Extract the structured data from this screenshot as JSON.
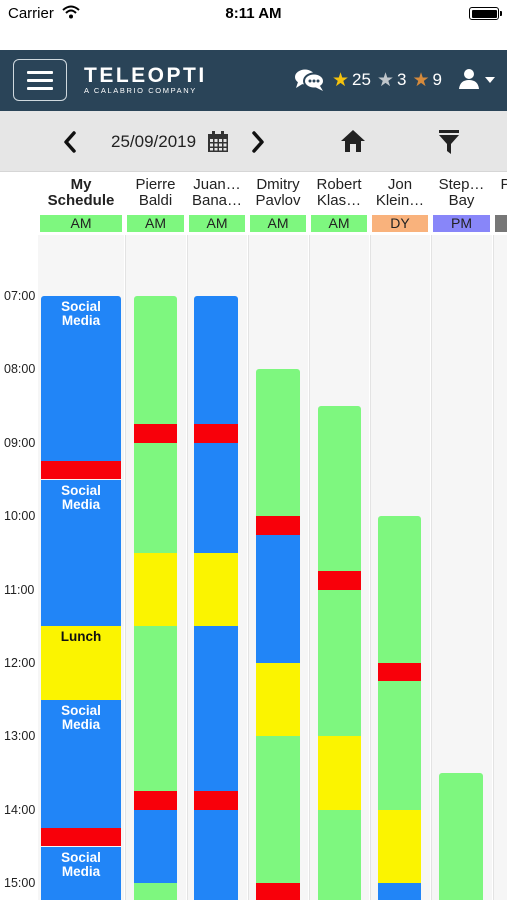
{
  "status_bar": {
    "carrier": "Carrier",
    "time": "8:11 AM"
  },
  "header": {
    "logo": "TELEOPTI",
    "logo_sub": "A CALABRIO COMPANY",
    "gold_stars": "25",
    "silver_stars": "3",
    "bronze_stars": "9",
    "icons": {
      "menu": "hamburger-icon",
      "messages": "chat-bubbles-icon",
      "user": "user-icon"
    }
  },
  "toolbar": {
    "date": "25/09/2019"
  },
  "colors": {
    "activity": "#2185f7",
    "break": "#7ef77f",
    "lunch": "#fbf400",
    "meeting": "#f8000a",
    "shift_am": "#7ef77f",
    "shift_dy": "#f9b27c",
    "shift_pm": "#8886f9",
    "shift_unknown": "#777777"
  },
  "hours": [
    "07:00",
    "08:00",
    "09:00",
    "10:00",
    "11:00",
    "12:00",
    "13:00",
    "14:00",
    "15:00"
  ],
  "columns": [
    {
      "id": "my-schedule",
      "mine": true,
      "line1": "My",
      "line2": "Schedule",
      "period": "AM",
      "period_color": "#7ef77f",
      "blocks": [
        {
          "start": "07:00",
          "end": "09:15",
          "color": "#2185f7",
          "label1": "Social",
          "label2": "Media"
        },
        {
          "start": "09:15",
          "end": "09:30",
          "color": "#f8000a"
        },
        {
          "start": "09:30",
          "end": "11:30",
          "color": "#2185f7",
          "label1": "Social",
          "label2": "Media"
        },
        {
          "start": "11:30",
          "end": "12:30",
          "color": "#fbf400",
          "label1": "Lunch",
          "dark": true
        },
        {
          "start": "12:30",
          "end": "14:15",
          "color": "#2185f7",
          "label1": "Social",
          "label2": "Media"
        },
        {
          "start": "14:15",
          "end": "14:30",
          "color": "#f8000a"
        },
        {
          "start": "14:30",
          "end": "15:30",
          "color": "#2185f7",
          "label1": "Social",
          "label2": "Media"
        }
      ]
    },
    {
      "id": "pierre-baldi",
      "line1": "Pierre",
      "line2": "Baldi",
      "period": "AM",
      "period_color": "#7ef77f",
      "blocks": [
        {
          "start": "07:00",
          "end": "08:45",
          "color": "#7ef77f"
        },
        {
          "start": "08:45",
          "end": "09:00",
          "color": "#f8000a"
        },
        {
          "start": "09:00",
          "end": "10:30",
          "color": "#7ef77f"
        },
        {
          "start": "10:30",
          "end": "11:30",
          "color": "#fbf400"
        },
        {
          "start": "11:30",
          "end": "13:45",
          "color": "#7ef77f"
        },
        {
          "start": "13:45",
          "end": "14:00",
          "color": "#f8000a"
        },
        {
          "start": "14:00",
          "end": "15:00",
          "color": "#2185f7"
        },
        {
          "start": "15:00",
          "end": "15:30",
          "color": "#7ef77f"
        }
      ]
    },
    {
      "id": "juan-bana",
      "line1": "Juan…",
      "line2": "Bana…",
      "period": "AM",
      "period_color": "#7ef77f",
      "blocks": [
        {
          "start": "07:00",
          "end": "08:45",
          "color": "#2185f7"
        },
        {
          "start": "08:45",
          "end": "09:00",
          "color": "#f8000a"
        },
        {
          "start": "09:00",
          "end": "10:30",
          "color": "#2185f7"
        },
        {
          "start": "10:30",
          "end": "11:30",
          "color": "#fbf400"
        },
        {
          "start": "11:30",
          "end": "13:45",
          "color": "#2185f7"
        },
        {
          "start": "13:45",
          "end": "14:00",
          "color": "#f8000a"
        },
        {
          "start": "14:00",
          "end": "15:30",
          "color": "#2185f7"
        }
      ]
    },
    {
      "id": "dmitry-pavlov",
      "line1": "Dmitry",
      "line2": "Pavlov",
      "period": "AM",
      "period_color": "#7ef77f",
      "blocks": [
        {
          "start": "08:00",
          "end": "10:00",
          "color": "#7ef77f"
        },
        {
          "start": "10:00",
          "end": "10:15",
          "color": "#f8000a"
        },
        {
          "start": "10:15",
          "end": "12:00",
          "color": "#2185f7"
        },
        {
          "start": "12:00",
          "end": "13:00",
          "color": "#fbf400"
        },
        {
          "start": "13:00",
          "end": "15:00",
          "color": "#7ef77f"
        },
        {
          "start": "15:00",
          "end": "15:30",
          "color": "#f8000a"
        }
      ]
    },
    {
      "id": "robert-klas",
      "line1": "Robert",
      "line2": "Klas…",
      "period": "AM",
      "period_color": "#7ef77f",
      "blocks": [
        {
          "start": "08:30",
          "end": "10:45",
          "color": "#7ef77f"
        },
        {
          "start": "10:45",
          "end": "11:00",
          "color": "#f8000a"
        },
        {
          "start": "11:00",
          "end": "13:00",
          "color": "#7ef77f"
        },
        {
          "start": "13:00",
          "end": "14:00",
          "color": "#fbf400"
        },
        {
          "start": "14:00",
          "end": "15:30",
          "color": "#7ef77f"
        }
      ]
    },
    {
      "id": "jon-klein",
      "line1": "Jon",
      "line2": "Klein…",
      "period": "DY",
      "period_color": "#f9b27c",
      "blocks": [
        {
          "start": "10:00",
          "end": "12:00",
          "color": "#7ef77f"
        },
        {
          "start": "12:00",
          "end": "12:15",
          "color": "#f8000a"
        },
        {
          "start": "12:15",
          "end": "14:00",
          "color": "#7ef77f"
        },
        {
          "start": "14:00",
          "end": "15:00",
          "color": "#fbf400"
        },
        {
          "start": "15:00",
          "end": "15:30",
          "color": "#2185f7"
        }
      ]
    },
    {
      "id": "stephen-bay",
      "line1": "Step…",
      "line2": "Bay",
      "period": "PM",
      "period_color": "#8886f9",
      "blocks": [
        {
          "start": "13:30",
          "end": "15:30",
          "color": "#7ef77f"
        }
      ]
    },
    {
      "id": "next-agent",
      "line1": "P…",
      "line2": "A",
      "period": "",
      "period_color": "#777777",
      "blocks": []
    }
  ]
}
